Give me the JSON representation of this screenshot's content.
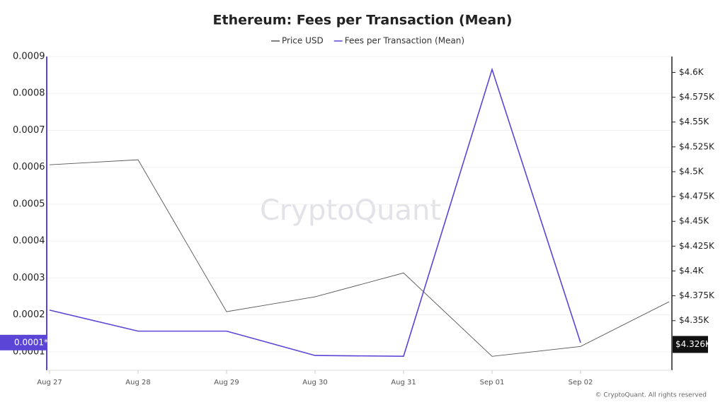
{
  "chart_data": {
    "type": "line",
    "title": "Ethereum: Fees per Transaction (Mean)",
    "categories": [
      "Aug 27",
      "Aug 28",
      "Aug 29",
      "Aug 30",
      "Aug 31",
      "Sep 01",
      "Sep 02",
      null
    ],
    "series": [
      {
        "name": "Price USD",
        "color": "#555555",
        "axis": "y2",
        "values": [
          4507,
          4512,
          4359,
          4374,
          4398,
          4314,
          4324,
          4369
        ]
      },
      {
        "name": "Fees per Transaction (Mean)",
        "color": "#5b45d6",
        "values": [
          0.000213,
          0.000156,
          0.000156,
          9e-05,
          8.8e-05,
          0.000865,
          0.000125,
          null
        ]
      }
    ],
    "ylim": [
      5e-05,
      0.0009
    ],
    "yticks": [
      0.0001,
      0.0002,
      0.0003,
      0.0004,
      0.0005,
      0.0006,
      0.0007,
      0.0008,
      0.0009
    ],
    "y2lim": [
      4300,
      4616
    ],
    "y2ticks": [
      {
        "value": 4350,
        "label": "$4.35K"
      },
      {
        "value": 4375,
        "label": "$4.375K"
      },
      {
        "value": 4400,
        "label": "$4.4K"
      },
      {
        "value": 4425,
        "label": "$4.425K"
      },
      {
        "value": 4450,
        "label": "$4.45K"
      },
      {
        "value": 4475,
        "label": "$4.475K"
      },
      {
        "value": 4500,
        "label": "$4.5K"
      },
      {
        "value": 4525,
        "label": "$4.525K"
      },
      {
        "value": 4550,
        "label": "$4.55K"
      },
      {
        "value": 4575,
        "label": "$4.575K"
      },
      {
        "value": 4600,
        "label": "$4.6K"
      }
    ],
    "y_marker": {
      "value": 0.000125,
      "label": "0.0001*"
    },
    "y2_marker": {
      "value": 4326,
      "label": "$4.326K"
    },
    "grid": true,
    "watermark": "CryptoQuant",
    "credit": "© CryptoQuant. All rights reserved"
  }
}
